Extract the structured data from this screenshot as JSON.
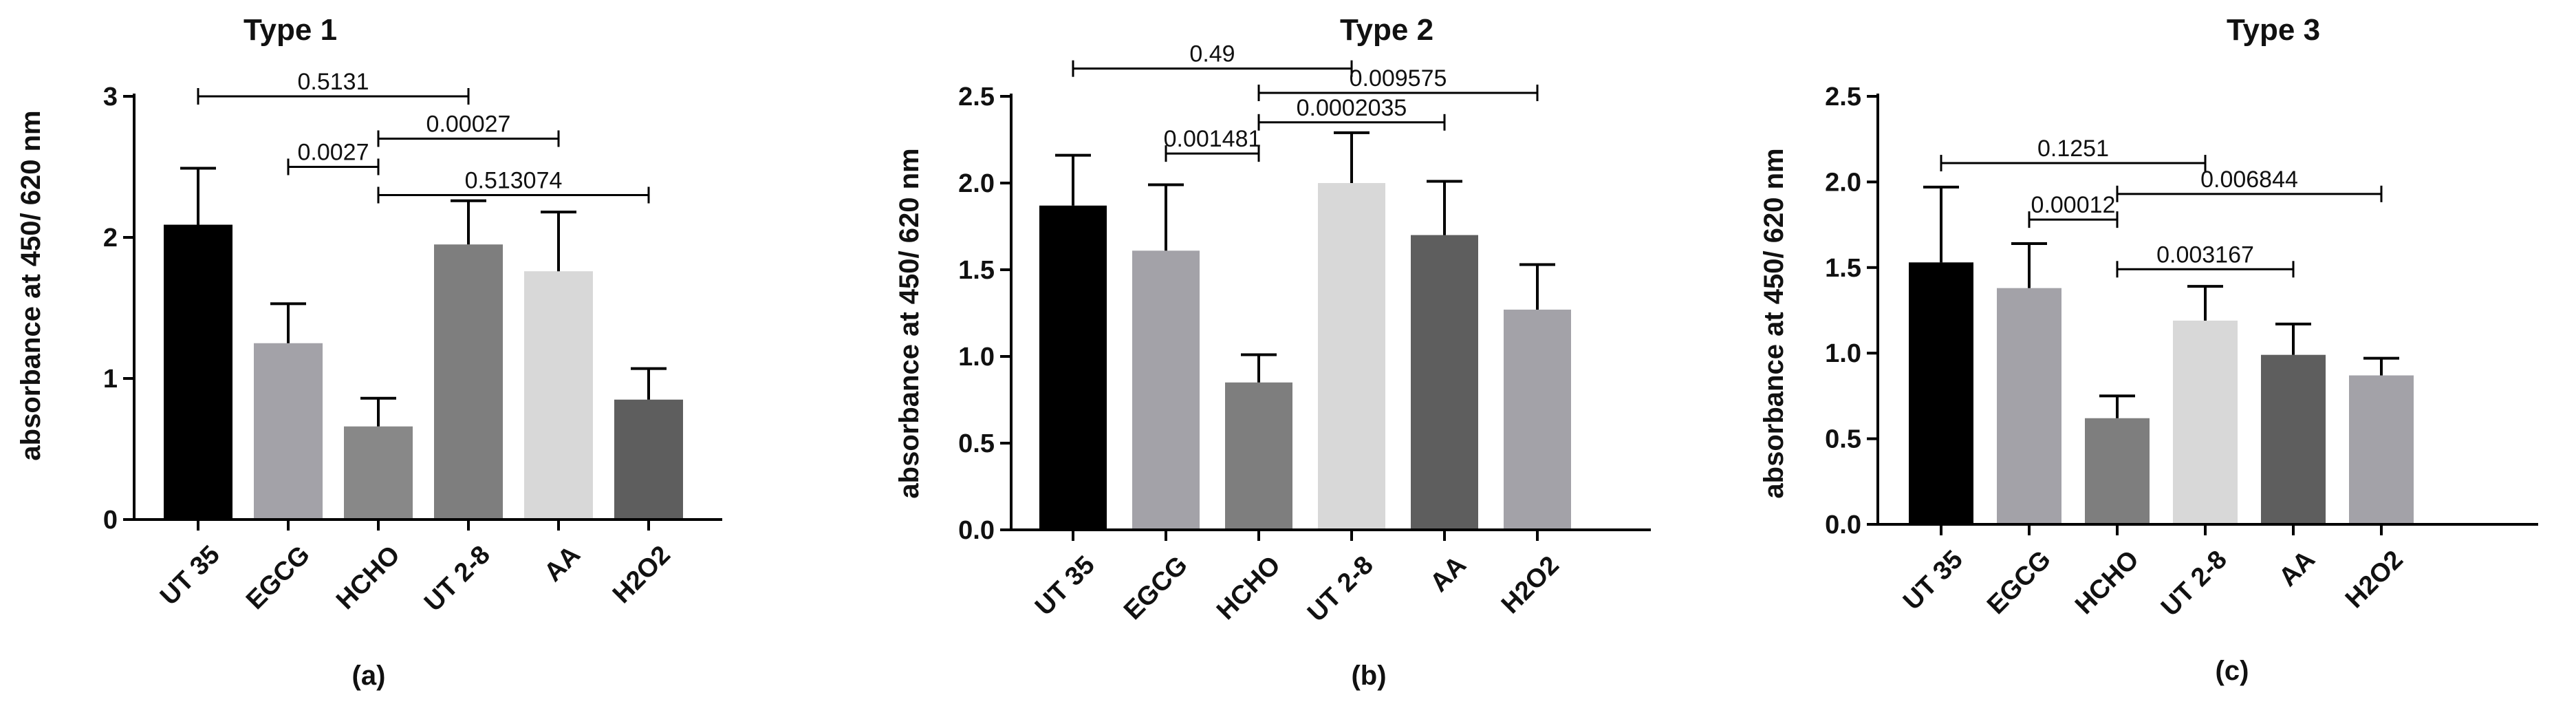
{
  "chart_data": [
    {
      "type": "bar",
      "title": "Type 1",
      "caption": "(a)",
      "xlabel": "",
      "ylabel": "absorbance at 450/ 620 nm",
      "categories": [
        "UT 35",
        "EGCG",
        "HCHO",
        "UT 2-8",
        "AA",
        "H2O2"
      ],
      "values": [
        2.09,
        1.25,
        0.66,
        1.95,
        1.76,
        0.85
      ],
      "errors": [
        0.4,
        0.28,
        0.2,
        0.31,
        0.42,
        0.22
      ],
      "colors": [
        "#000000",
        "#a3a2a8",
        "#888888",
        "#7e7e7e",
        "#d8d8d8",
        "#5e5e5e"
      ],
      "ylim": [
        0,
        3
      ],
      "yticks": [
        "0",
        "1",
        "2",
        "3"
      ],
      "tick_values": [
        0,
        1,
        2,
        3
      ],
      "comparisons": [
        {
          "from": 0,
          "to": 3,
          "level": 3.0,
          "label": "0.5131"
        },
        {
          "from": 2,
          "to": 4,
          "level": 2.7,
          "label": "0.00027"
        },
        {
          "from": 1,
          "to": 2,
          "level": 2.5,
          "label": "0.0027"
        },
        {
          "from": 2,
          "to": 5,
          "level": 2.3,
          "label": "0.513074"
        }
      ]
    },
    {
      "type": "bar",
      "title": "Type 2",
      "caption": "(b)",
      "xlabel": "",
      "ylabel": "absorbance at 450/ 620 nm",
      "categories": [
        "UT 35",
        "EGCG",
        "HCHO",
        "UT 2-8",
        "AA",
        "H2O2"
      ],
      "values": [
        1.87,
        1.61,
        0.85,
        2.0,
        1.7,
        1.27
      ],
      "errors": [
        0.29,
        0.38,
        0.16,
        0.29,
        0.31,
        0.26
      ],
      "colors": [
        "#000000",
        "#a3a2a8",
        "#7e7e7e",
        "#d8d8d8",
        "#5e5e5e",
        "#a3a2a8"
      ],
      "ylim": [
        0,
        2.5
      ],
      "yticks": [
        "0.0",
        "0.5",
        "1.0",
        "1.5",
        "2.0",
        "2.5"
      ],
      "tick_values": [
        0,
        0.5,
        1.0,
        1.5,
        2.0,
        2.5
      ],
      "comparisons": [
        {
          "from": 0,
          "to": 3,
          "level": 2.66,
          "label": "0.49"
        },
        {
          "from": 2,
          "to": 5,
          "level": 2.52,
          "label": "0.009575"
        },
        {
          "from": 2,
          "to": 4,
          "level": 2.35,
          "label": "0.0002035"
        },
        {
          "from": 1,
          "to": 2,
          "level": 2.17,
          "label": "0.001481"
        }
      ]
    },
    {
      "type": "bar",
      "title": "Type 3",
      "caption": "(c)",
      "xlabel": "",
      "ylabel": "absorbance at 450/ 620 nm",
      "categories": [
        "UT 35",
        "EGCG",
        "HCHO",
        "UT 2-8",
        "AA",
        "H2O2"
      ],
      "values": [
        1.53,
        1.38,
        0.62,
        1.19,
        0.99,
        0.87
      ],
      "errors": [
        0.44,
        0.26,
        0.13,
        0.2,
        0.18,
        0.1
      ],
      "colors": [
        "#000000",
        "#a3a2a8",
        "#7e7e7e",
        "#d8d8d8",
        "#5e5e5e",
        "#a3a2a8"
      ],
      "ylim": [
        0,
        2.5
      ],
      "yticks": [
        "0.0",
        "0.5",
        "1.0",
        "1.5",
        "2.0",
        "2.5"
      ],
      "tick_values": [
        0,
        0.5,
        1.0,
        1.5,
        2.0,
        2.5
      ],
      "comparisons": [
        {
          "from": 0,
          "to": 3,
          "level": 2.11,
          "label": "0.1251"
        },
        {
          "from": 2,
          "to": 5,
          "level": 1.93,
          "label": "0.006844"
        },
        {
          "from": 1,
          "to": 2,
          "level": 1.78,
          "label": "0.00012"
        },
        {
          "from": 2,
          "to": 4,
          "level": 1.49,
          "label": "0.003167"
        }
      ]
    }
  ]
}
